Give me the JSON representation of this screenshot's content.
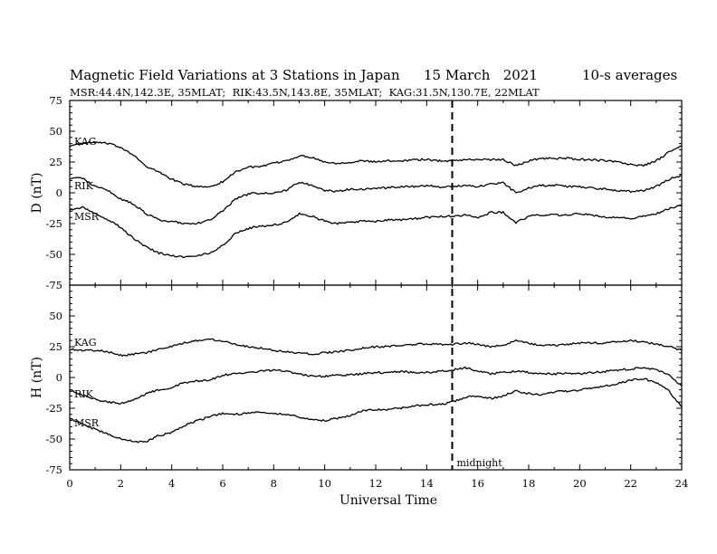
{
  "chart_data": {
    "type": "line",
    "title": "Magnetic Field Variations at 3 Stations in Japan",
    "date": "15 March   2021",
    "note": "10-s averages",
    "subtitle": "MSR:44.4N,142.3E, 35MLAT;  RIK:43.5N,143.8E, 35MLAT;  KAG:31.5N,130.7E, 22MLAT",
    "xlabel": "Universal Time",
    "xlim": [
      0,
      24
    ],
    "xticks": [
      0,
      2,
      4,
      6,
      8,
      10,
      12,
      14,
      16,
      18,
      20,
      22,
      24
    ],
    "x": [
      0,
      0.5,
      1,
      1.5,
      2,
      2.5,
      3,
      3.5,
      4,
      4.5,
      5,
      5.5,
      6,
      6.5,
      7,
      7.5,
      8,
      8.5,
      9,
      9.5,
      10,
      10.5,
      11,
      11.5,
      12,
      12.5,
      13,
      13.5,
      14,
      14.5,
      15,
      15.5,
      16,
      16.5,
      17,
      17.5,
      18,
      18.5,
      19,
      19.5,
      20,
      20.5,
      21,
      21.5,
      22,
      22.5,
      23,
      23.5,
      24
    ],
    "panels": [
      {
        "ylabel": "D (nT)",
        "ylim": [
          -75,
          75
        ],
        "yticks": [
          75,
          50,
          25,
          0,
          -25,
          -50,
          -75
        ],
        "series": [
          {
            "name": "KAG",
            "values": [
              38,
              40,
              41,
              40,
              37,
              31,
              21,
              17,
              11,
              7,
              5,
              5,
              9,
              17,
              21,
              21,
              24,
              26,
              30,
              29,
              25,
              24,
              25,
              26,
              25,
              26,
              26,
              27,
              27,
              26,
              26,
              27,
              27,
              27,
              27,
              22,
              26,
              28,
              28,
              28,
              27,
              27,
              26,
              25,
              23,
              22,
              26,
              33,
              38
            ]
          },
          {
            "name": "RIK",
            "values": [
              12,
              12,
              5,
              2,
              -5,
              -9,
              -17,
              -22,
              -23,
              -25,
              -25,
              -22,
              -15,
              -5,
              -1,
              0,
              0,
              2,
              9,
              6,
              2,
              1,
              3,
              3,
              4,
              4,
              5,
              5,
              6,
              5,
              5,
              6,
              5,
              7,
              8,
              0,
              4,
              6,
              6,
              5,
              5,
              4,
              3,
              2,
              1,
              2,
              5,
              11,
              14
            ]
          },
          {
            "name": "MSR",
            "values": [
              -14,
              -12,
              -17,
              -22,
              -28,
              -37,
              -44,
              -49,
              -51,
              -52,
              -51,
              -49,
              -43,
              -33,
              -29,
              -27,
              -26,
              -24,
              -17,
              -19,
              -23,
              -25,
              -24,
              -23,
              -23,
              -22,
              -22,
              -21,
              -20,
              -19,
              -19,
              -18,
              -20,
              -16,
              -16,
              -24,
              -19,
              -18,
              -18,
              -18,
              -17,
              -18,
              -20,
              -20,
              -21,
              -19,
              -17,
              -13,
              -10
            ]
          }
        ]
      },
      {
        "ylabel": "H (nT)",
        "ylim": [
          -75,
          75
        ],
        "yticks": [
          75,
          50,
          25,
          0,
          -25,
          -50,
          -75
        ],
        "series": [
          {
            "name": "KAG",
            "values": [
              23,
              22,
              22,
              21,
              18,
              19,
              20,
              23,
              25,
              28,
              30,
              31,
              30,
              27,
              25,
              24,
              22,
              21,
              20,
              19,
              20,
              21,
              22,
              24,
              25,
              25,
              26,
              27,
              27,
              27,
              27,
              28,
              27,
              25,
              26,
              30,
              28,
              26,
              26,
              27,
              28,
              28,
              28,
              29,
              30,
              29,
              27,
              25,
              22
            ]
          },
          {
            "name": "RIK",
            "values": [
              -10,
              -14,
              -18,
              -20,
              -21,
              -18,
              -13,
              -10,
              -8,
              -4,
              -3,
              -2,
              2,
              3,
              4,
              5,
              6,
              5,
              3,
              1,
              1,
              2,
              2,
              3,
              4,
              4,
              5,
              4,
              4,
              5,
              6,
              8,
              5,
              3,
              4,
              5,
              4,
              3,
              3,
              3,
              3,
              4,
              5,
              6,
              7,
              8,
              6,
              2,
              -7
            ]
          },
          {
            "name": "MSR",
            "values": [
              -33,
              -38,
              -42,
              -46,
              -50,
              -52,
              -52,
              -47,
              -45,
              -39,
              -35,
              -32,
              -29,
              -30,
              -29,
              -28,
              -29,
              -30,
              -32,
              -34,
              -35,
              -33,
              -31,
              -27,
              -26,
              -26,
              -25,
              -23,
              -22,
              -22,
              -20,
              -16,
              -15,
              -17,
              -15,
              -11,
              -13,
              -14,
              -12,
              -11,
              -10,
              -9,
              -7,
              -5,
              -2,
              -1,
              -4,
              -11,
              -24
            ]
          }
        ]
      }
    ],
    "vertical_marker": {
      "x": 15,
      "style": "dashed",
      "label": "midnight"
    }
  }
}
